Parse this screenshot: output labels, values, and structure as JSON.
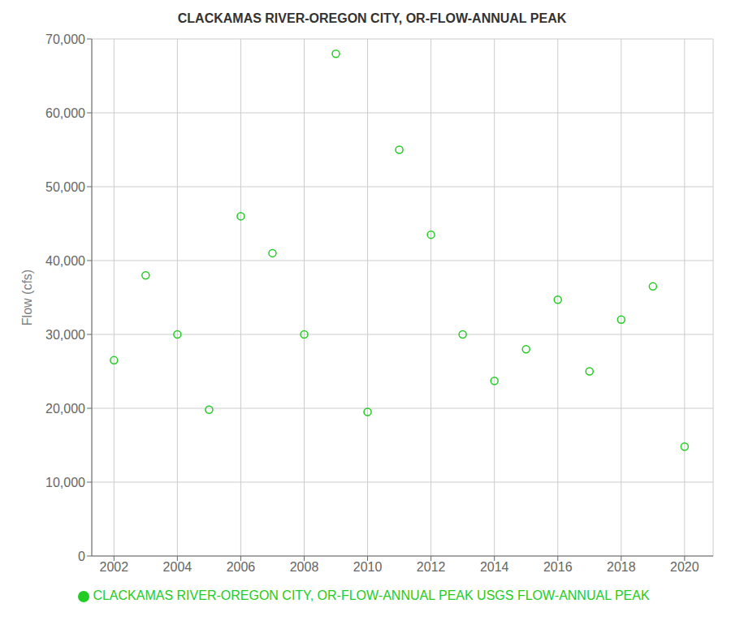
{
  "chart_data": {
    "type": "scatter",
    "title": "CLACKAMAS RIVER-OREGON CITY, OR-FLOW-ANNUAL PEAK",
    "y_label": "Flow (cfs)",
    "x": [
      2002,
      2003,
      2004,
      2005,
      2006,
      2007,
      2008,
      2009,
      2010,
      2011,
      2012,
      2013,
      2014,
      2015,
      2016,
      2017,
      2018,
      2019,
      2020
    ],
    "series": [
      {
        "name": "CLACKAMAS RIVER-OREGON CITY, OR-FLOW-ANNUAL PEAK USGS FLOW-ANNUAL PEAK",
        "color": "#22cc22",
        "marker": "circle",
        "values": [
          26500,
          38000,
          30000,
          19800,
          46000,
          41000,
          30000,
          68000,
          19500,
          55000,
          43500,
          30000,
          23700,
          28000,
          34700,
          25000,
          32000,
          36500,
          14800
        ]
      }
    ],
    "xlim": [
      2001.3,
      2020.9
    ],
    "ylim": [
      0,
      70000
    ],
    "xticks": [
      2002,
      2004,
      2006,
      2008,
      2010,
      2012,
      2014,
      2016,
      2018,
      2020
    ],
    "yticks": [
      0,
      {
        "value": 10000,
        "label": "10,000"
      },
      {
        "value": 20000,
        "label": "20,000"
      },
      {
        "value": 30000,
        "label": "30,000"
      },
      {
        "value": 40000,
        "label": "40,000"
      },
      {
        "value": 50000,
        "label": "50,000"
      },
      {
        "value": 60000,
        "label": "60,000"
      },
      {
        "value": 70000,
        "label": "70,000"
      }
    ],
    "grid": true,
    "legend": "bottom"
  }
}
